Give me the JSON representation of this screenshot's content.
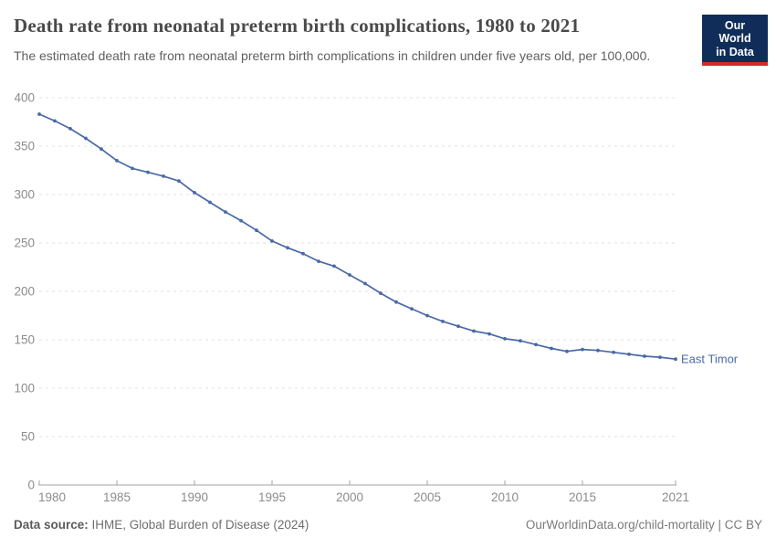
{
  "header": {
    "title": "Death rate from neonatal preterm birth complications, 1980 to 2021",
    "subtitle": "The estimated death rate from neonatal preterm birth complications in children under five years old, per 100,000."
  },
  "logo": {
    "line1": "Our World",
    "line2": "in Data",
    "bg_color": "#102d59",
    "accent_color": "#d7282f"
  },
  "style": {
    "title_color": "#4a4a4a",
    "subtitle_color": "#5f5f5f",
    "footer_color": "#6e6e6e",
    "link_color": "#7a7a7a",
    "grid_color": "#e2e2e2",
    "axis_color": "#a3a3a3",
    "tick_label_color": "#8c8c8c"
  },
  "chart_data": {
    "type": "line",
    "title": "Death rate from neonatal preterm birth complications, 1980 to 2021",
    "xlabel": "",
    "ylabel": "",
    "grid": true,
    "legend_position": "end-of-line-label",
    "ylim": [
      0,
      400
    ],
    "yticks": [
      0,
      50,
      100,
      150,
      200,
      250,
      300,
      350,
      400
    ],
    "xticks": [
      1980,
      1985,
      1990,
      1995,
      2000,
      2005,
      2010,
      2015,
      2021
    ],
    "x": [
      1980,
      1981,
      1982,
      1983,
      1984,
      1985,
      1986,
      1987,
      1988,
      1989,
      1990,
      1991,
      1992,
      1993,
      1994,
      1995,
      1996,
      1997,
      1998,
      1999,
      2000,
      2001,
      2002,
      2003,
      2004,
      2005,
      2006,
      2007,
      2008,
      2009,
      2010,
      2011,
      2012,
      2013,
      2014,
      2015,
      2016,
      2017,
      2018,
      2019,
      2020,
      2021
    ],
    "series": [
      {
        "name": "East Timor",
        "color": "#4a69a5",
        "values": [
          383,
          376,
          368,
          358,
          347,
          335,
          327,
          323,
          319,
          314,
          302,
          292,
          282,
          273,
          263,
          252,
          245,
          239,
          231,
          226,
          217,
          208,
          198,
          189,
          182,
          175,
          169,
          164,
          159,
          156,
          151,
          149,
          145,
          141,
          138,
          140,
          139,
          137,
          135,
          133,
          132,
          130
        ]
      }
    ]
  },
  "footer": {
    "source_label": "Data source:",
    "source_value": " IHME, Global Burden of Disease (2024)",
    "link": "OurWorldinData.org/child-mortality",
    "license": " | CC BY"
  }
}
